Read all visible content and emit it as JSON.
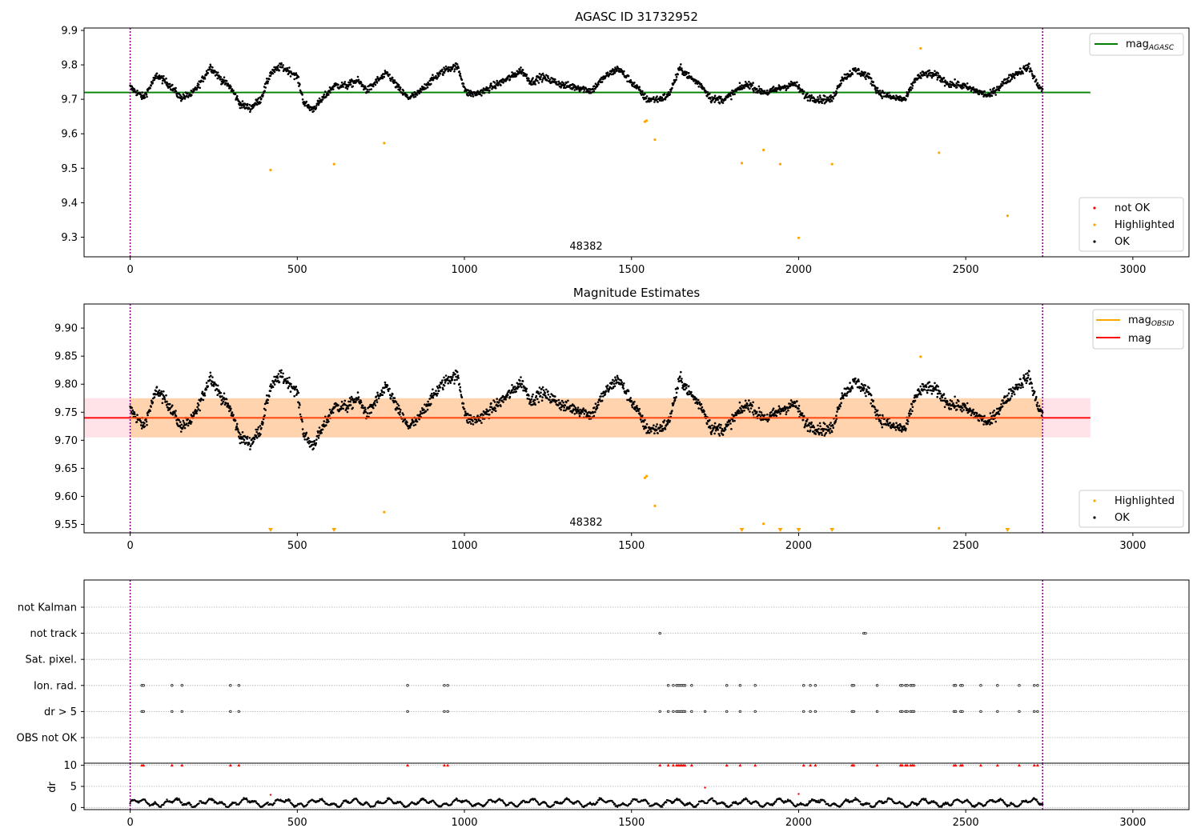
{
  "chart_data": [
    {
      "type": "scatter",
      "title": "AGASC ID 31732952",
      "xlim": [
        -138,
        3168
      ],
      "ylim": [
        9.243,
        9.907
      ],
      "xticks": [
        "0",
        "500",
        "1000",
        "1500",
        "2000",
        "2500",
        "3000"
      ],
      "yticks": [
        "9.3",
        "9.4",
        "9.5",
        "9.6",
        "9.7",
        "9.8",
        "9.9"
      ],
      "annotation": "48382",
      "lines": [
        {
          "name": "mag$_{AGASC}$",
          "label": "mag",
          "sub": "AGASC",
          "color": "#008000",
          "y": 9.72,
          "x": [
            -138,
            2873
          ]
        }
      ],
      "vlines": [
        0,
        2730
      ],
      "series": [
        {
          "name": "not OK",
          "color": "#ff0000",
          "points": []
        },
        {
          "name": "Highlighted",
          "color": "#ffa500",
          "points": [
            [
              420,
              9.495
            ],
            [
              610,
              9.512
            ],
            [
              760,
              9.573
            ],
            [
              1540,
              9.635
            ],
            [
              1545,
              9.638
            ],
            [
              1570,
              9.583
            ],
            [
              1830,
              9.515
            ],
            [
              1895,
              9.553
            ],
            [
              1945,
              9.512
            ],
            [
              2000,
              9.298
            ],
            [
              2100,
              9.512
            ],
            [
              2365,
              9.848
            ],
            [
              2420,
              9.545
            ],
            [
              2625,
              9.362
            ]
          ]
        },
        {
          "name": "OK",
          "color": "#000000",
          "segments": [
            [
              0,
              9.735
            ],
            [
              40,
              9.705
            ],
            [
              80,
              9.77
            ],
            [
              120,
              9.74
            ],
            [
              150,
              9.705
            ],
            [
              185,
              9.715
            ],
            [
              215,
              9.755
            ],
            [
              240,
              9.795
            ],
            [
              270,
              9.76
            ],
            [
              300,
              9.735
            ],
            [
              330,
              9.685
            ],
            [
              360,
              9.675
            ],
            [
              390,
              9.7
            ],
            [
              420,
              9.775
            ],
            [
              450,
              9.795
            ],
            [
              480,
              9.78
            ],
            [
              500,
              9.765
            ],
            [
              520,
              9.69
            ],
            [
              545,
              9.67
            ],
            [
              575,
              9.7
            ],
            [
              610,
              9.74
            ],
            [
              650,
              9.74
            ],
            [
              680,
              9.755
            ],
            [
              710,
              9.725
            ],
            [
              740,
              9.755
            ],
            [
              770,
              9.775
            ],
            [
              800,
              9.735
            ],
            [
              830,
              9.705
            ],
            [
              860,
              9.715
            ],
            [
              890,
              9.745
            ],
            [
              920,
              9.77
            ],
            [
              950,
              9.79
            ],
            [
              980,
              9.795
            ],
            [
              1005,
              9.72
            ],
            [
              1030,
              9.715
            ],
            [
              1060,
              9.725
            ],
            [
              1100,
              9.745
            ],
            [
              1140,
              9.765
            ],
            [
              1170,
              9.785
            ],
            [
              1200,
              9.75
            ],
            [
              1230,
              9.765
            ],
            [
              1260,
              9.755
            ],
            [
              1300,
              9.74
            ],
            [
              1340,
              9.735
            ],
            [
              1380,
              9.725
            ],
            [
              1420,
              9.765
            ],
            [
              1460,
              9.79
            ],
            [
              1490,
              9.76
            ],
            [
              1520,
              9.73
            ],
            [
              1545,
              9.7
            ],
            [
              1580,
              9.7
            ],
            [
              1610,
              9.71
            ],
            [
              1645,
              9.79
            ],
            [
              1680,
              9.76
            ],
            [
              1710,
              9.74
            ],
            [
              1740,
              9.7
            ],
            [
              1780,
              9.7
            ],
            [
              1820,
              9.73
            ],
            [
              1850,
              9.745
            ],
            [
              1880,
              9.725
            ],
            [
              1910,
              9.72
            ],
            [
              1950,
              9.735
            ],
            [
              1990,
              9.745
            ],
            [
              2020,
              9.71
            ],
            [
              2060,
              9.7
            ],
            [
              2100,
              9.7
            ],
            [
              2130,
              9.76
            ],
            [
              2170,
              9.785
            ],
            [
              2210,
              9.765
            ],
            [
              2240,
              9.72
            ],
            [
              2280,
              9.705
            ],
            [
              2320,
              9.7
            ],
            [
              2350,
              9.76
            ],
            [
              2380,
              9.775
            ],
            [
              2410,
              9.77
            ],
            [
              2450,
              9.745
            ],
            [
              2490,
              9.74
            ],
            [
              2530,
              9.725
            ],
            [
              2570,
              9.71
            ],
            [
              2610,
              9.745
            ],
            [
              2650,
              9.775
            ],
            [
              2690,
              9.795
            ],
            [
              2710,
              9.75
            ],
            [
              2730,
              9.725
            ]
          ]
        }
      ],
      "legend": [
        {
          "label": "not OK",
          "color": "#ff0000"
        },
        {
          "label": "Highlighted",
          "color": "#ffa500"
        },
        {
          "label": "OK",
          "color": "#000000"
        }
      ]
    },
    {
      "type": "scatter",
      "title": "Magnitude Estimates",
      "xlim": [
        -138,
        3168
      ],
      "ylim": [
        9.535,
        9.943
      ],
      "xticks": [
        "0",
        "500",
        "1000",
        "1500",
        "2000",
        "2500",
        "3000"
      ],
      "yticks": [
        "9.55",
        "9.60",
        "9.65",
        "9.70",
        "9.75",
        "9.80",
        "9.85",
        "9.90"
      ],
      "annotation": "48382",
      "lines": [
        {
          "name": "mag$_{OBSID}$",
          "label": "mag",
          "sub": "OBSID",
          "color": "#ffa500",
          "y": 9.74
        },
        {
          "name": "mag",
          "label": "mag",
          "color": "#ff0000",
          "y": 9.74,
          "x": [
            -138,
            2873
          ]
        }
      ],
      "band": {
        "y": [
          9.705,
          9.775
        ],
        "x": [
          -138,
          2873
        ]
      },
      "vlines": [
        0,
        2730
      ],
      "series": [
        {
          "name": "Highlighted",
          "color": "#ffa500",
          "points": [
            [
              760,
              9.572
            ],
            [
              1540,
              9.633
            ],
            [
              1545,
              9.636
            ],
            [
              1570,
              9.583
            ],
            [
              1895,
              9.551
            ],
            [
              2365,
              9.849
            ],
            [
              2420,
              9.543
            ]
          ],
          "below_range": [
            420,
            610,
            1830,
            1945,
            2000,
            2100,
            2625
          ]
        },
        {
          "name": "OK",
          "color": "#000000"
        }
      ],
      "legend": [
        {
          "label": "Highlighted",
          "color": "#ffa500"
        },
        {
          "label": "OK",
          "color": "#000000"
        }
      ]
    },
    {
      "type": "scatter",
      "xlim": [
        -138,
        3168
      ],
      "categories": [
        "not Kalman",
        "not track",
        "Sat. pixel.",
        "Ion. rad.",
        "dr > 5",
        "OBS not OK"
      ],
      "vlines": [
        0,
        2730
      ],
      "flags": {
        "not track": [
          1585,
          2195,
          2200
        ],
        "Ion. rad.": [
          35,
          40,
          125,
          155,
          300,
          325,
          830,
          940,
          950,
          1610,
          1625,
          1635,
          1640,
          1645,
          1650,
          1655,
          1660,
          1680,
          1785,
          1825,
          1870,
          2015,
          2035,
          2050,
          2160,
          2165,
          2235,
          2305,
          2310,
          2320,
          2325,
          2335,
          2340,
          2345,
          2465,
          2470,
          2485,
          2490,
          2545,
          2595,
          2660,
          2705,
          2715
        ],
        "dr > 5": [
          35,
          40,
          125,
          155,
          300,
          325,
          830,
          940,
          950,
          1585,
          1610,
          1625,
          1635,
          1640,
          1645,
          1650,
          1655,
          1660,
          1680,
          1720,
          1785,
          1825,
          1870,
          2015,
          2035,
          2050,
          2160,
          2165,
          2235,
          2305,
          2310,
          2320,
          2325,
          2335,
          2340,
          2345,
          2465,
          2470,
          2485,
          2490,
          2545,
          2595,
          2660,
          2705,
          2715
        ]
      }
    },
    {
      "type": "scatter",
      "xlim": [
        -138,
        3168
      ],
      "ylim": [
        -0.5,
        10.5
      ],
      "xticks": [
        "0",
        "500",
        "1000",
        "1500",
        "2000",
        "2500",
        "3000"
      ],
      "yticks": [
        "0",
        "5",
        "10"
      ],
      "ylabel": "dr",
      "vlines": [
        0,
        2730
      ],
      "clipped_at": 10,
      "clipped_x": [
        35,
        40,
        125,
        155,
        300,
        325,
        830,
        940,
        950,
        1585,
        1610,
        1625,
        1635,
        1640,
        1645,
        1650,
        1655,
        1660,
        1680,
        1785,
        1825,
        1870,
        2015,
        2035,
        2050,
        2160,
        2165,
        2235,
        2305,
        2310,
        2320,
        2325,
        2335,
        2340,
        2345,
        2465,
        2470,
        2485,
        2490,
        2545,
        2595,
        2660,
        2705,
        2715
      ],
      "outliers": [
        [
          420,
          3.0
        ],
        [
          1720,
          4.7
        ],
        [
          2000,
          3.2
        ]
      ]
    }
  ]
}
